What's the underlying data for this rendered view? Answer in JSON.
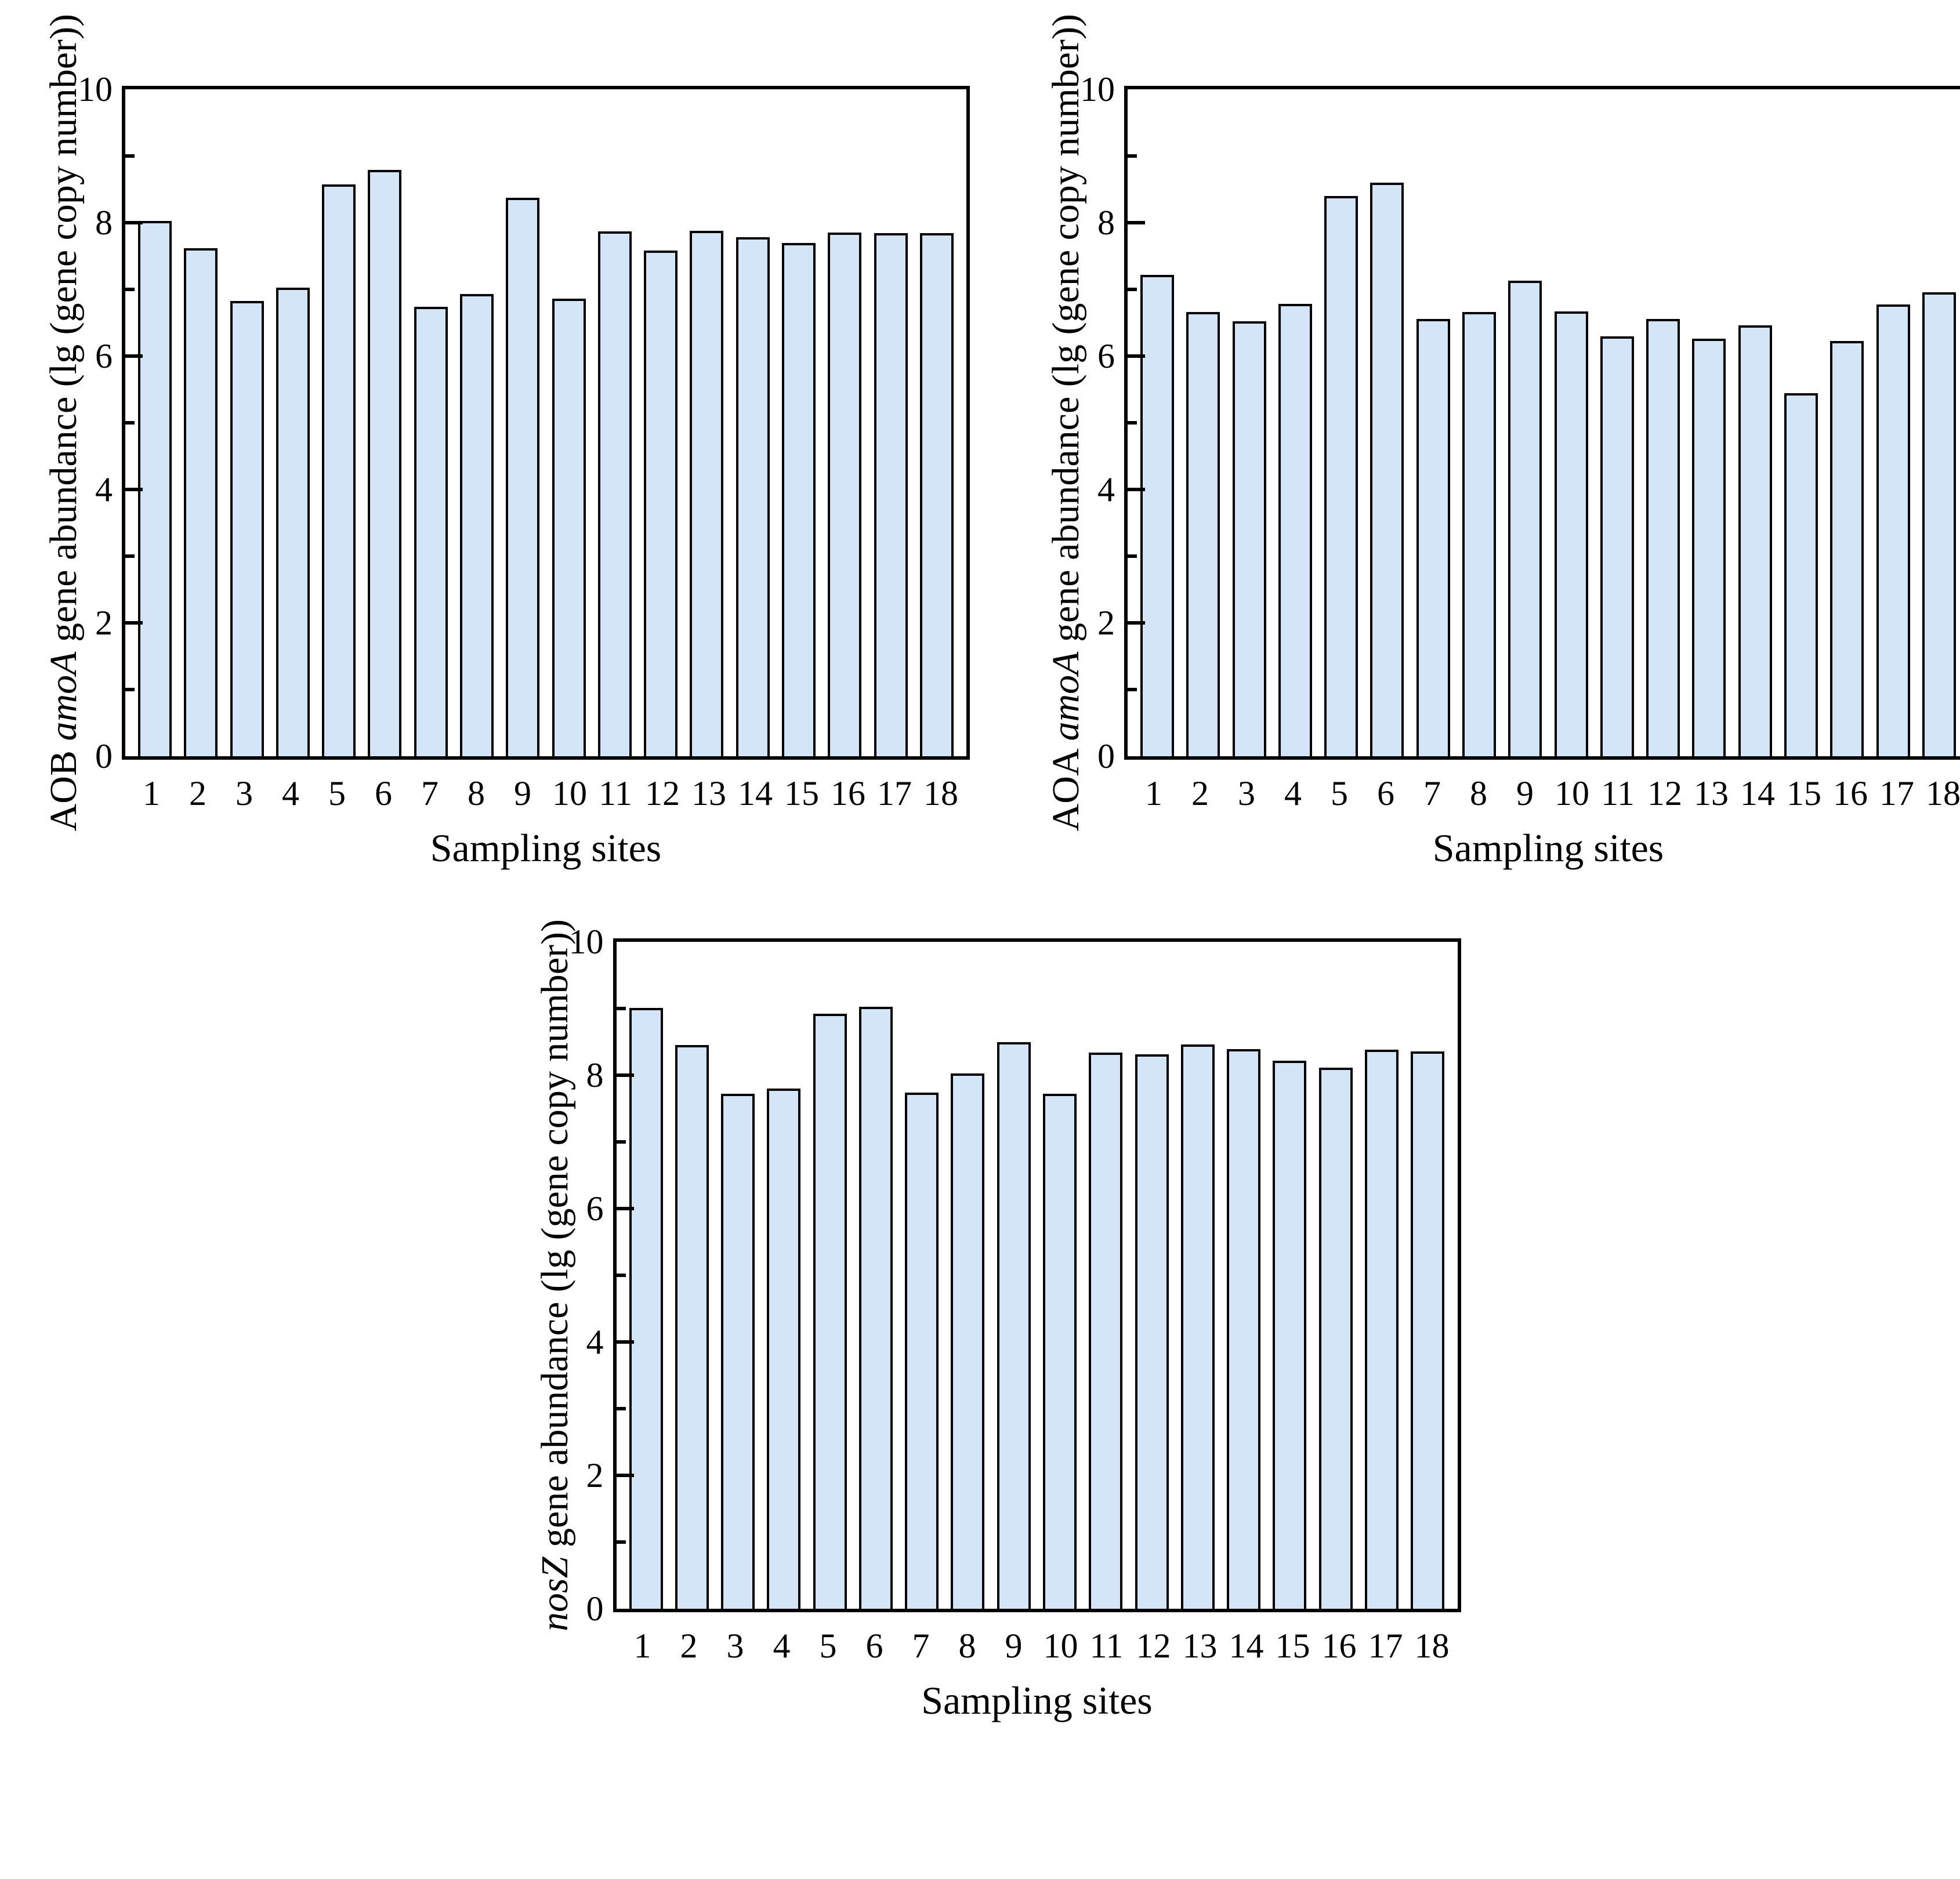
{
  "figure_type": "three-panel bar figure",
  "axis": {
    "y_ticks_major": [
      0,
      2,
      4,
      6,
      8,
      10
    ],
    "y_ticks_minor": [
      1,
      3,
      5,
      7,
      9
    ],
    "y_min": 0,
    "y_max": 10
  },
  "colors": {
    "bar_fill": "#d5e5f8",
    "bar_border": "#000000",
    "axis_color": "#000000",
    "background": "#ffffff"
  },
  "chart_data": [
    {
      "type": "bar",
      "panel": "top-left",
      "ylabel_prefix": "AOB ",
      "ylabel_gene": "amoA",
      "ylabel_suffix": " gene abundance (lg (gene copy number))",
      "xlabel": "Sampling sites",
      "ylim": [
        0,
        10
      ],
      "grid": false,
      "legend": "none",
      "categories": [
        "1",
        "2",
        "3",
        "4",
        "5",
        "6",
        "7",
        "8",
        "9",
        "10",
        "11",
        "12",
        "13",
        "14",
        "15",
        "16",
        "17",
        "18"
      ],
      "values": [
        8.03,
        7.62,
        6.83,
        7.03,
        8.57,
        8.79,
        6.74,
        6.93,
        8.37,
        6.86,
        7.87,
        7.58,
        7.88,
        7.78,
        7.7,
        7.85,
        7.84,
        7.84
      ]
    },
    {
      "type": "bar",
      "panel": "top-right",
      "ylabel_prefix": "AOA ",
      "ylabel_gene": "amoA",
      "ylabel_suffix": " gene abundance (lg (gene copy number))",
      "xlabel": "Sampling sites",
      "ylim": [
        0,
        10
      ],
      "grid": false,
      "legend": "none",
      "categories": [
        "1",
        "2",
        "3",
        "4",
        "5",
        "6",
        "7",
        "8",
        "9",
        "10",
        "11",
        "12",
        "13",
        "14",
        "15",
        "16",
        "17",
        "18"
      ],
      "values": [
        7.22,
        6.66,
        6.52,
        6.78,
        8.4,
        8.6,
        6.56,
        6.66,
        7.13,
        6.67,
        6.3,
        6.56,
        6.26,
        6.46,
        5.44,
        6.23,
        6.77,
        6.96
      ]
    },
    {
      "type": "bar",
      "panel": "bottom-center",
      "ylabel_prefix": "",
      "ylabel_gene": "nosZ",
      "ylabel_suffix": " gene abundance (lg (gene copy number))",
      "xlabel": "Sampling sites",
      "ylim": [
        0,
        10
      ],
      "grid": false,
      "legend": "none",
      "categories": [
        "1",
        "2",
        "3",
        "4",
        "5",
        "6",
        "7",
        "8",
        "9",
        "10",
        "11",
        "12",
        "13",
        "14",
        "15",
        "16",
        "17",
        "18"
      ],
      "values": [
        9.01,
        8.45,
        7.72,
        7.8,
        8.92,
        9.03,
        7.74,
        8.03,
        8.5,
        7.72,
        8.34,
        8.31,
        8.46,
        8.39,
        8.22,
        8.11,
        8.38,
        8.36
      ]
    }
  ]
}
